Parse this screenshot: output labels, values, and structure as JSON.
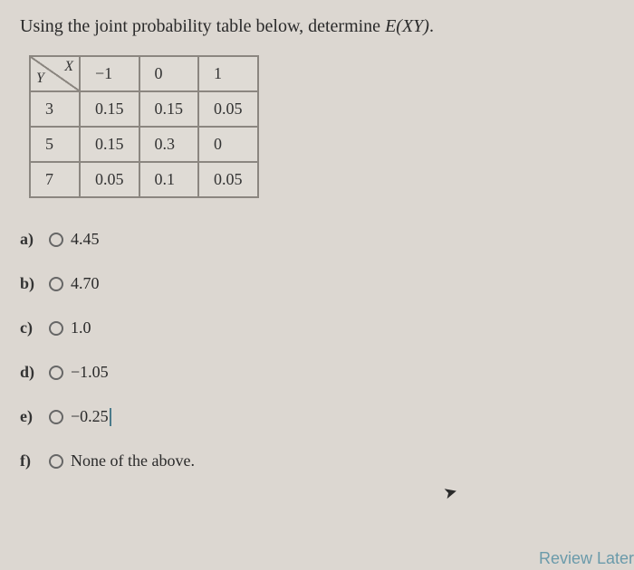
{
  "question": {
    "prefix": "Using the joint probability table below, determine ",
    "math": "E(XY)",
    "suffix": "."
  },
  "table": {
    "corner_y": "Y",
    "corner_x": "X",
    "col_headers": [
      "−1",
      "0",
      "1"
    ],
    "row_headers": [
      "3",
      "5",
      "7"
    ],
    "cells": [
      [
        "0.15",
        "0.15",
        "0.05"
      ],
      [
        "0.15",
        "0.3",
        "0"
      ],
      [
        "0.05",
        "0.1",
        "0.05"
      ]
    ]
  },
  "options": {
    "a": {
      "label": "a)",
      "text": "4.45"
    },
    "b": {
      "label": "b)",
      "text": "4.70"
    },
    "c": {
      "label": "c)",
      "text": "1.0"
    },
    "d": {
      "label": "d)",
      "text": "−1.05"
    },
    "e": {
      "label": "e)",
      "text": "−0.25"
    },
    "f": {
      "label": "f)",
      "text": "None of the above."
    }
  },
  "review_later": "Review Later"
}
